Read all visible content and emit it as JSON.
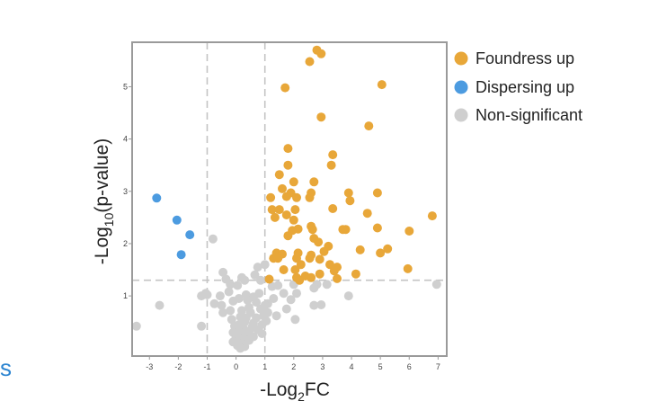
{
  "edge_text": "s",
  "colors": {
    "up": "#e8a739",
    "down": "#4c9be0",
    "ns": "#cfcfcf",
    "edge_text": "#2e86d1"
  },
  "chart_data": {
    "type": "scatter",
    "title": "",
    "xlabel": {
      "main": "-Log",
      "sub": "2",
      "tail": "FC"
    },
    "ylabel": {
      "main": "-Log",
      "sub": "10",
      "tail": "(p-value)"
    },
    "xlim": [
      -3.6,
      7.3
    ],
    "ylim": [
      -0.15,
      5.85
    ],
    "x_ticks": [
      -3,
      -2,
      -1,
      0,
      1,
      2,
      3,
      4,
      5,
      6,
      7
    ],
    "y_ticks": [
      1,
      2,
      3,
      4,
      5
    ],
    "thresholds": {
      "x": [
        -1,
        1
      ],
      "y": 1.3
    },
    "grid": false,
    "legend_position": "top-right",
    "series": [
      {
        "name": "Foundress up",
        "color": "#e8a739",
        "points": [
          [
            2.8,
            5.7
          ],
          [
            2.95,
            5.63
          ],
          [
            2.55,
            5.48
          ],
          [
            5.05,
            5.04
          ],
          [
            1.7,
            4.98
          ],
          [
            2.95,
            4.42
          ],
          [
            4.6,
            4.25
          ],
          [
            1.8,
            3.82
          ],
          [
            3.35,
            3.7
          ],
          [
            1.8,
            3.5
          ],
          [
            3.3,
            3.5
          ],
          [
            1.5,
            3.32
          ],
          [
            2.0,
            3.18
          ],
          [
            2.7,
            3.18
          ],
          [
            1.6,
            3.05
          ],
          [
            1.9,
            2.97
          ],
          [
            2.6,
            2.97
          ],
          [
            3.9,
            2.97
          ],
          [
            4.9,
            2.97
          ],
          [
            1.2,
            2.88
          ],
          [
            1.75,
            2.9
          ],
          [
            2.1,
            2.88
          ],
          [
            2.55,
            2.88
          ],
          [
            3.95,
            2.82
          ],
          [
            1.25,
            2.65
          ],
          [
            1.5,
            2.65
          ],
          [
            2.05,
            2.65
          ],
          [
            3.35,
            2.67
          ],
          [
            4.55,
            2.58
          ],
          [
            6.8,
            2.53
          ],
          [
            1.35,
            2.5
          ],
          [
            1.75,
            2.55
          ],
          [
            2.0,
            2.45
          ],
          [
            2.6,
            2.33
          ],
          [
            3.8,
            2.27
          ],
          [
            4.9,
            2.3
          ],
          [
            1.95,
            2.25
          ],
          [
            2.15,
            2.28
          ],
          [
            2.65,
            2.27
          ],
          [
            3.7,
            2.27
          ],
          [
            6.0,
            2.24
          ],
          [
            1.8,
            2.15
          ],
          [
            2.7,
            2.1
          ],
          [
            2.85,
            2.03
          ],
          [
            3.2,
            1.95
          ],
          [
            5.25,
            1.9
          ],
          [
            3.05,
            1.85
          ],
          [
            4.3,
            1.88
          ],
          [
            1.4,
            1.82
          ],
          [
            1.6,
            1.8
          ],
          [
            2.15,
            1.82
          ],
          [
            2.6,
            1.78
          ],
          [
            5.0,
            1.82
          ],
          [
            1.3,
            1.72
          ],
          [
            1.45,
            1.72
          ],
          [
            2.1,
            1.72
          ],
          [
            2.55,
            1.72
          ],
          [
            2.9,
            1.7
          ],
          [
            3.25,
            1.6
          ],
          [
            3.5,
            1.55
          ],
          [
            2.25,
            1.6
          ],
          [
            2.05,
            1.5
          ],
          [
            1.65,
            1.5
          ],
          [
            3.4,
            1.48
          ],
          [
            5.95,
            1.52
          ],
          [
            2.9,
            1.42
          ],
          [
            4.15,
            1.42
          ],
          [
            2.4,
            1.38
          ],
          [
            2.6,
            1.35
          ],
          [
            2.1,
            1.35
          ],
          [
            2.2,
            1.3
          ],
          [
            3.5,
            1.33
          ],
          [
            1.15,
            1.32
          ]
        ]
      },
      {
        "name": "Dispersing up",
        "color": "#4c9be0",
        "points": [
          [
            -2.75,
            2.87
          ],
          [
            -2.05,
            2.45
          ],
          [
            -1.6,
            2.17
          ],
          [
            -1.9,
            1.79
          ]
        ]
      },
      {
        "name": "Non-significant",
        "color": "#cfcfcf",
        "points": [
          [
            -0.8,
            2.09
          ],
          [
            1.0,
            1.6
          ],
          [
            0.75,
            1.55
          ],
          [
            -0.45,
            1.45
          ],
          [
            0.65,
            1.4
          ],
          [
            0.2,
            1.35
          ],
          [
            0.85,
            1.3
          ],
          [
            0.3,
            1.3
          ],
          [
            -0.35,
            1.32
          ],
          [
            -0.2,
            1.22
          ],
          [
            0.05,
            1.2
          ],
          [
            1.25,
            1.18
          ],
          [
            1.45,
            1.2
          ],
          [
            2.0,
            1.22
          ],
          [
            2.8,
            1.22
          ],
          [
            3.15,
            1.22
          ],
          [
            2.7,
            1.15
          ],
          [
            -1.05,
            1.05
          ],
          [
            -0.25,
            1.08
          ],
          [
            0.35,
            1.02
          ],
          [
            0.8,
            1.05
          ],
          [
            1.65,
            1.05
          ],
          [
            2.1,
            1.05
          ],
          [
            3.9,
            1.0
          ],
          [
            -1.2,
            1.0
          ],
          [
            -0.55,
            1.0
          ],
          [
            0.6,
            0.98
          ],
          [
            1.3,
            0.95
          ],
          [
            1.9,
            0.93
          ],
          [
            0.1,
            0.95
          ],
          [
            0.4,
            0.92
          ],
          [
            -0.1,
            0.9
          ],
          [
            0.7,
            0.88
          ],
          [
            1.1,
            0.85
          ],
          [
            -0.75,
            0.85
          ],
          [
            2.7,
            0.82
          ],
          [
            2.95,
            0.83
          ],
          [
            1.0,
            0.82
          ],
          [
            -0.5,
            0.82
          ],
          [
            0.45,
            0.78
          ],
          [
            0.85,
            0.75
          ],
          [
            1.75,
            0.75
          ],
          [
            -0.2,
            0.72
          ],
          [
            0.2,
            0.72
          ],
          [
            -0.45,
            0.68
          ],
          [
            1.1,
            0.68
          ],
          [
            0.5,
            0.68
          ],
          [
            0.95,
            0.62
          ],
          [
            1.4,
            0.62
          ],
          [
            0.15,
            0.6
          ],
          [
            0.35,
            0.58
          ],
          [
            0.7,
            0.58
          ],
          [
            -0.15,
            0.55
          ],
          [
            1.05,
            0.52
          ],
          [
            2.05,
            0.55
          ],
          [
            0.3,
            0.5
          ],
          [
            0.6,
            0.48
          ],
          [
            0.9,
            0.45
          ],
          [
            0.1,
            0.45
          ],
          [
            -0.05,
            0.42
          ],
          [
            -1.2,
            0.42
          ],
          [
            0.55,
            0.4
          ],
          [
            0.25,
            0.38
          ],
          [
            0.75,
            0.35
          ],
          [
            0.45,
            0.32
          ],
          [
            0.15,
            0.3
          ],
          [
            -0.1,
            0.3
          ],
          [
            0.9,
            0.28
          ],
          [
            0.3,
            0.25
          ],
          [
            0.6,
            0.22
          ],
          [
            0.0,
            0.2
          ],
          [
            0.25,
            0.18
          ],
          [
            0.45,
            0.15
          ],
          [
            0.1,
            0.13
          ],
          [
            -0.1,
            0.12
          ],
          [
            0.2,
            0.08
          ],
          [
            0.05,
            0.05
          ],
          [
            0.3,
            0.03
          ],
          [
            0.15,
            0.0
          ],
          [
            -3.45,
            0.42
          ],
          [
            -2.65,
            0.82
          ],
          [
            -1.0,
            1.02
          ],
          [
            6.95,
            1.22
          ]
        ]
      }
    ]
  }
}
